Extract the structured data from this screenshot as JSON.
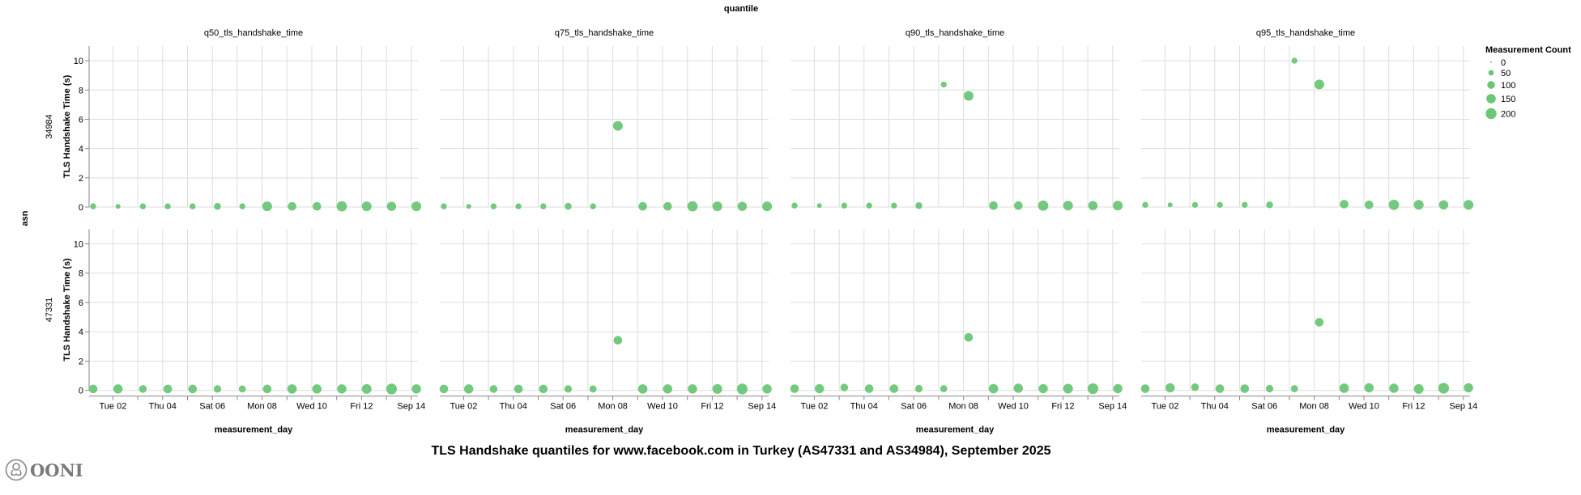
{
  "chart_data": {
    "type": "scatter",
    "title": "TLS Handshake quantiles for www.facebook.com in Turkey (AS47331 and AS34984), September 2025",
    "column_facet_title": "quantile",
    "row_facet_title": "asn",
    "xlabel": "measurement_day",
    "ylabel": "TLS Handshake Time (s)",
    "ylim": [
      0,
      11
    ],
    "yticks": [
      0,
      2,
      4,
      6,
      8,
      10
    ],
    "xtick_labels": [
      "Tue 02",
      "Thu 04",
      "Sat 06",
      "Mon 08",
      "Wed 10",
      "Fri 12",
      "Sep 14"
    ],
    "grid": true,
    "color": "#6cc677",
    "columns": [
      "q50_tls_handshake_time",
      "q75_tls_handshake_time",
      "q90_tls_handshake_time",
      "q95_tls_handshake_time"
    ],
    "rows": [
      "34984",
      "47331"
    ],
    "x": [
      "2025-09-01",
      "2025-09-02",
      "2025-09-03",
      "2025-09-04",
      "2025-09-05",
      "2025-09-06",
      "2025-09-07",
      "2025-09-08",
      "2025-09-09",
      "2025-09-10",
      "2025-09-11",
      "2025-09-12",
      "2025-09-13",
      "2025-09-14"
    ],
    "measurement_count": {
      "34984": [
        60,
        40,
        60,
        60,
        60,
        80,
        60,
        160,
        125,
        125,
        180,
        160,
        145,
        160
      ],
      "47331": [
        125,
        145,
        100,
        125,
        125,
        95,
        85,
        125,
        150,
        145,
        145,
        160,
        195,
        145
      ]
    },
    "values": {
      "34984": {
        "q50_tls_handshake_time": [
          0.05,
          0.05,
          0.05,
          0.05,
          0.05,
          0.05,
          0.05,
          0.05,
          0.05,
          0.05,
          0.05,
          0.05,
          0.05,
          0.05
        ],
        "q75_tls_handshake_time": [
          0.05,
          0.05,
          0.05,
          0.05,
          0.05,
          0.05,
          0.05,
          5.55,
          0.05,
          0.05,
          0.05,
          0.05,
          0.05,
          0.05
        ],
        "q90_tls_handshake_time": [
          0.1,
          0.1,
          0.1,
          0.1,
          0.1,
          0.1,
          8.37,
          7.6,
          0.1,
          0.1,
          0.1,
          0.1,
          0.1,
          0.1
        ],
        "q95_tls_handshake_time": [
          0.15,
          0.15,
          0.15,
          0.15,
          0.15,
          0.15,
          10.0,
          8.38,
          0.2,
          0.15,
          0.15,
          0.15,
          0.15,
          0.15
        ]
      },
      "47331": {
        "q50_tls_handshake_time": [
          0.1,
          0.1,
          0.1,
          0.1,
          0.1,
          0.1,
          0.1,
          0.1,
          0.1,
          0.1,
          0.1,
          0.1,
          0.1,
          0.1
        ],
        "q75_tls_handshake_time": [
          0.1,
          0.1,
          0.1,
          0.1,
          0.1,
          0.1,
          0.1,
          3.42,
          0.1,
          0.1,
          0.1,
          0.1,
          0.1,
          0.1
        ],
        "q90_tls_handshake_time": [
          0.12,
          0.12,
          0.2,
          0.12,
          0.12,
          0.12,
          0.12,
          3.62,
          0.12,
          0.15,
          0.12,
          0.12,
          0.12,
          0.12
        ],
        "q95_tls_handshake_time": [
          0.12,
          0.18,
          0.22,
          0.12,
          0.12,
          0.12,
          0.12,
          4.65,
          0.15,
          0.18,
          0.15,
          0.1,
          0.15,
          0.18
        ]
      }
    },
    "legend": {
      "title": "Measurement Count",
      "position": "right",
      "entries": [
        0,
        50,
        100,
        150,
        200
      ]
    }
  },
  "logo": {
    "text": "OONI"
  }
}
